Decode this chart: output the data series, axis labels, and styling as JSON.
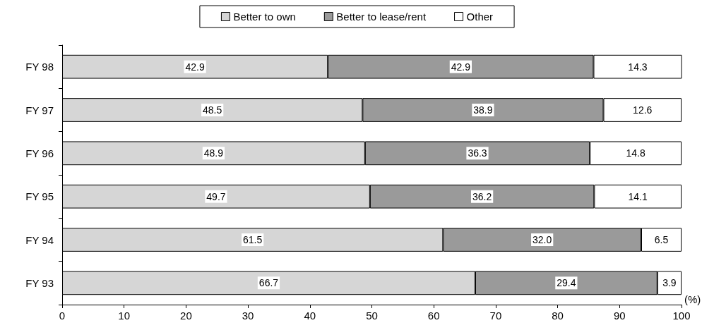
{
  "chart_data": {
    "type": "bar",
    "orientation": "horizontal",
    "stacked": true,
    "xlabel": "(%)",
    "categories": [
      "FY 98",
      "FY 97",
      "FY 96",
      "FY 95",
      "FY 94",
      "FY 93"
    ],
    "series": [
      {
        "name": "Better to own",
        "color": "#d6d6d6",
        "values": [
          42.9,
          48.5,
          48.9,
          49.7,
          61.5,
          66.7
        ],
        "value_labels": [
          "42.9",
          "48.5",
          "48.9",
          "49.7",
          "61.5",
          "66.7"
        ]
      },
      {
        "name": "Better to lease/rent",
        "color": "#9a9a9a",
        "values": [
          42.9,
          38.9,
          36.3,
          36.2,
          32.0,
          29.4
        ],
        "value_labels": [
          "42.9",
          "38.9",
          "36.3",
          "36.2",
          "32.0",
          "29.4"
        ]
      },
      {
        "name": "Other",
        "color": "#ffffff",
        "values": [
          14.3,
          12.6,
          14.8,
          14.1,
          6.5,
          3.9
        ],
        "value_labels": [
          "14.3",
          "12.6",
          "14.8",
          "14.1",
          "6.5",
          "3.9"
        ]
      }
    ],
    "xlim": [
      0,
      100
    ],
    "xticks": [
      0,
      10,
      20,
      30,
      40,
      50,
      60,
      70,
      80,
      90,
      100
    ],
    "grid": false,
    "legend": "top"
  }
}
